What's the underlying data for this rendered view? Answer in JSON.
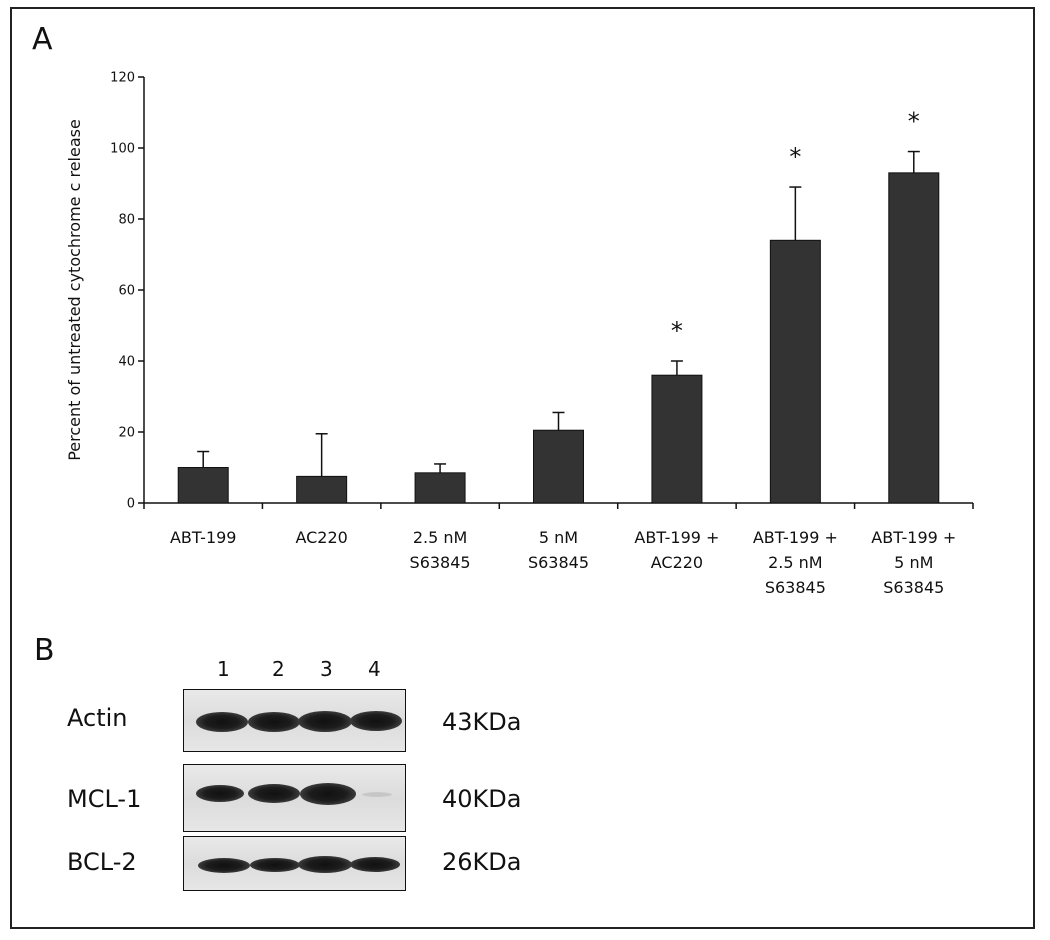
{
  "panels": {
    "a_label": "A",
    "b_label": "B"
  },
  "chart_data": {
    "type": "bar",
    "ylabel": "Percent of untreated cytochrome c release",
    "xlabel": "",
    "ylim": [
      0,
      120
    ],
    "yticks": [
      0,
      20,
      40,
      60,
      80,
      100,
      120
    ],
    "categories": [
      [
        "ABT-199"
      ],
      [
        "AC220"
      ],
      [
        "2.5 nM",
        "S63845"
      ],
      [
        "5 nM",
        "S63845"
      ],
      [
        "ABT-199 +",
        "AC220"
      ],
      [
        "ABT-199 +",
        "2.5 nM",
        "S63845"
      ],
      [
        "ABT-199 +",
        "5 nM",
        "S63845"
      ]
    ],
    "values": [
      10,
      7.5,
      8.5,
      20.5,
      36,
      74,
      93
    ],
    "errors": [
      4.5,
      12,
      2.5,
      5,
      4,
      15,
      6
    ],
    "significance": [
      "",
      "",
      "",
      "",
      "*",
      "*",
      "*"
    ],
    "bar_color": "#333333",
    "grid": false
  },
  "blot": {
    "lanes": [
      "1",
      "2",
      "3",
      "4"
    ],
    "rows": [
      {
        "protein": "Actin",
        "size": "43KDa"
      },
      {
        "protein": "MCL-1",
        "size": "40KDa"
      },
      {
        "protein": "BCL-2",
        "size": "26KDa"
      }
    ]
  }
}
